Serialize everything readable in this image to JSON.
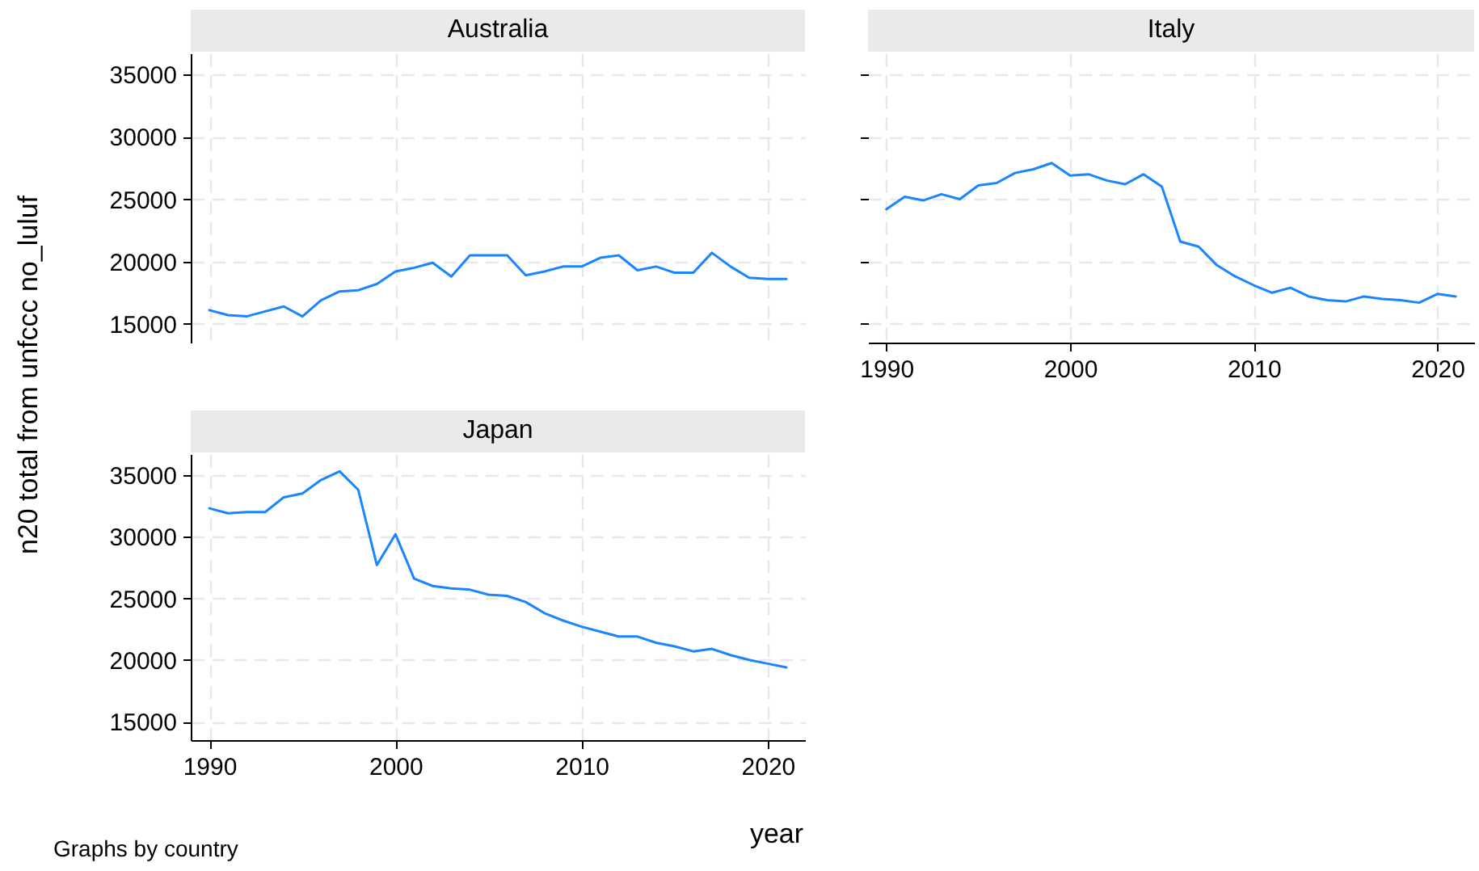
{
  "chart_data": [
    {
      "type": "line",
      "title": "Australia",
      "ylabel": "n20 total from unfccc no_luluf",
      "x": [
        1990,
        1991,
        1992,
        1993,
        1994,
        1995,
        1996,
        1997,
        1998,
        1999,
        2000,
        2001,
        2002,
        2003,
        2004,
        2005,
        2006,
        2007,
        2008,
        2009,
        2010,
        2011,
        2012,
        2013,
        2014,
        2015,
        2016,
        2017,
        2018,
        2019,
        2020,
        2021
      ],
      "series": [
        {
          "color": "#1a85ff",
          "values": [
            16100,
            15700,
            15600,
            16000,
            16400,
            15600,
            16900,
            17600,
            17700,
            18200,
            19200,
            19500,
            19900,
            18800,
            20500,
            20500,
            20500,
            18900,
            19200,
            19600,
            19600,
            20300,
            20500,
            19300,
            19600,
            19100,
            19100,
            20700,
            19600,
            18700,
            18600,
            18600
          ]
        }
      ],
      "xlim": [
        1989,
        2022
      ],
      "ylim": [
        13500,
        36700
      ],
      "xticks": [
        1990,
        2000,
        2010,
        2020
      ],
      "yticks": [
        15000,
        20000,
        25000,
        30000,
        35000
      ],
      "grid": true,
      "tick_labels": "y"
    },
    {
      "type": "line",
      "title": "Italy",
      "x": [
        1990,
        1991,
        1992,
        1993,
        1994,
        1995,
        1996,
        1997,
        1998,
        1999,
        2000,
        2001,
        2002,
        2003,
        2004,
        2005,
        2006,
        2007,
        2008,
        2009,
        2010,
        2011,
        2012,
        2013,
        2014,
        2015,
        2016,
        2017,
        2018,
        2019,
        2020,
        2021
      ],
      "series": [
        {
          "color": "#1a85ff",
          "values": [
            24200,
            25200,
            24900,
            25400,
            25000,
            26100,
            26300,
            27100,
            27400,
            27900,
            26900,
            27000,
            26500,
            26200,
            27000,
            26000,
            21600,
            21200,
            19700,
            18800,
            18100,
            17500,
            17900,
            17200,
            16900,
            16800,
            17200,
            17000,
            16900,
            16700,
            17400,
            17200
          ]
        }
      ],
      "xlim": [
        1989,
        2022
      ],
      "ylim": [
        13500,
        36700
      ],
      "xticks": [
        1990,
        2000,
        2010,
        2020
      ],
      "yticks": [
        15000,
        20000,
        25000,
        30000,
        35000
      ],
      "grid": true,
      "tick_labels": "x"
    },
    {
      "type": "line",
      "title": "Japan",
      "xlabel": "year",
      "annotations": [
        "Graphs by country"
      ],
      "x": [
        1990,
        1991,
        1992,
        1993,
        1994,
        1995,
        1996,
        1997,
        1998,
        1999,
        2000,
        2001,
        2002,
        2003,
        2004,
        2005,
        2006,
        2007,
        2008,
        2009,
        2010,
        2011,
        2012,
        2013,
        2014,
        2015,
        2016,
        2017,
        2018,
        2019,
        2020,
        2021
      ],
      "series": [
        {
          "color": "#1a85ff",
          "values": [
            32300,
            31900,
            32000,
            32000,
            33200,
            33500,
            34600,
            35300,
            33800,
            27700,
            30200,
            26600,
            26000,
            25800,
            25700,
            25300,
            25200,
            24700,
            23800,
            23200,
            22700,
            22300,
            21900,
            21900,
            21400,
            21100,
            20700,
            20900,
            20400,
            20000,
            19700,
            19400
          ]
        }
      ],
      "xlim": [
        1989,
        2022
      ],
      "ylim": [
        13500,
        36700
      ],
      "xticks": [
        1990,
        2000,
        2010,
        2020
      ],
      "yticks": [
        15000,
        20000,
        25000,
        30000,
        35000
      ],
      "grid": true
    }
  ]
}
